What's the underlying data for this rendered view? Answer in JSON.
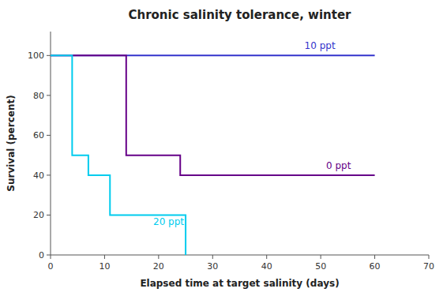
{
  "chart_data": {
    "type": "line",
    "title": "Chronic salinity tolerance, winter",
    "xlabel": "Elapsed time at target salinity (days)",
    "ylabel": "Survival (percent)",
    "xlim": [
      0,
      70
    ],
    "ylim": [
      0,
      112
    ],
    "xticks": [
      0,
      10,
      20,
      30,
      40,
      50,
      60,
      70
    ],
    "yticks": [
      0,
      20,
      40,
      60,
      80,
      100
    ],
    "series": [
      {
        "color": "#3333CC",
        "x": [
          0,
          60
        ],
        "values": [
          100,
          100
        ]
      },
      {
        "color": "#660088",
        "x": [
          0,
          14,
          14,
          24,
          24,
          60
        ],
        "values": [
          100,
          100,
          50,
          50,
          40,
          40
        ]
      },
      {
        "color": "#00CCEE",
        "x": [
          0,
          4,
          4,
          7,
          7,
          11,
          11,
          22,
          22,
          25,
          25
        ],
        "values": [
          100,
          100,
          50,
          50,
          40,
          40,
          20,
          20,
          20,
          20,
          0
        ]
      }
    ],
    "annotations": [
      {
        "text": "10 ppt",
        "x": 47,
        "y": 102,
        "color": "#3333CC"
      },
      {
        "text": "0 ppt",
        "x": 51,
        "y": 42,
        "color": "#660088"
      },
      {
        "text": "20 ppt",
        "x": 19,
        "y": 14,
        "color": "#00CCEE"
      }
    ]
  }
}
